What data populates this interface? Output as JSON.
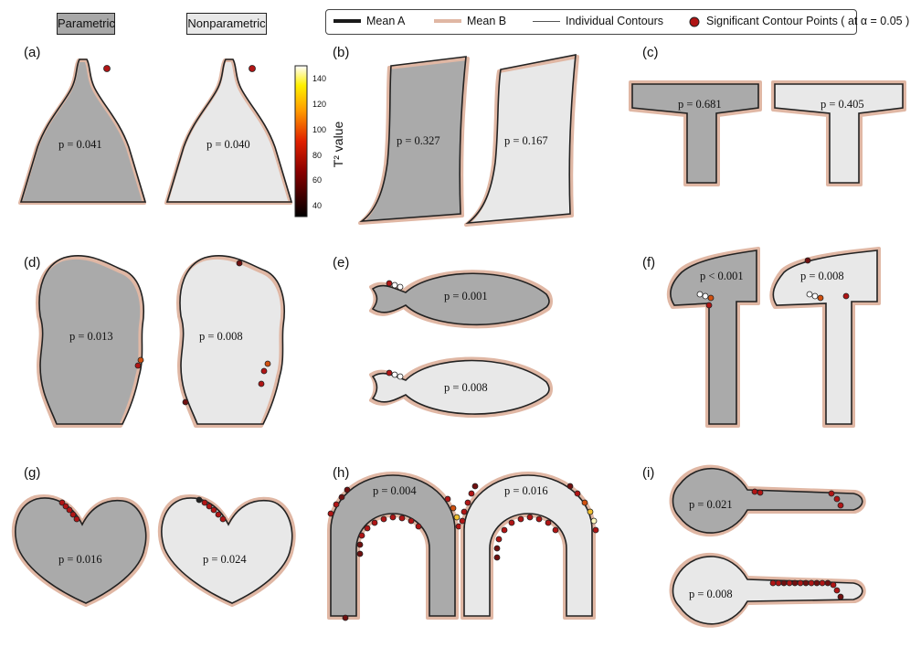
{
  "headers": {
    "parametric": "Parametric",
    "nonparametric": "Nonparametric"
  },
  "legend": {
    "mean_a": "Mean A",
    "mean_b": "Mean B",
    "individual": "Individual Contours",
    "significant": "Significant Contour Points ( at α = 0.05 )"
  },
  "colorbar": {
    "label": "T² value",
    "ticks": [
      "140",
      "120",
      "100",
      "80",
      "60",
      "40"
    ]
  },
  "colors": {
    "mean_a": "#1a1a1a",
    "mean_b": "#e0b7a4",
    "individual": "#555555",
    "param_fill": "#aaaaaa",
    "nonparam_fill": "#e8e8e8",
    "sig": "#b01515"
  },
  "panels": [
    {
      "label": "(a)",
      "p_param": "p = 0.041",
      "p_nonparam": "p = 0.040"
    },
    {
      "label": "(b)",
      "p_param": "p = 0.327",
      "p_nonparam": "p = 0.167"
    },
    {
      "label": "(c)",
      "p_param": "p = 0.681",
      "p_nonparam": "p = 0.405"
    },
    {
      "label": "(d)",
      "p_param": "p = 0.013",
      "p_nonparam": "p = 0.008"
    },
    {
      "label": "(e)",
      "p_param": "p = 0.001",
      "p_nonparam": "p = 0.008"
    },
    {
      "label": "(f)",
      "p_param": "p < 0.001",
      "p_nonparam": "p = 0.008"
    },
    {
      "label": "(g)",
      "p_param": "p = 0.016",
      "p_nonparam": "p = 0.024"
    },
    {
      "label": "(h)",
      "p_param": "p = 0.004",
      "p_nonparam": "p = 0.016"
    },
    {
      "label": "(i)",
      "p_param": "p = 0.021",
      "p_nonparam": "p = 0.008"
    }
  ]
}
